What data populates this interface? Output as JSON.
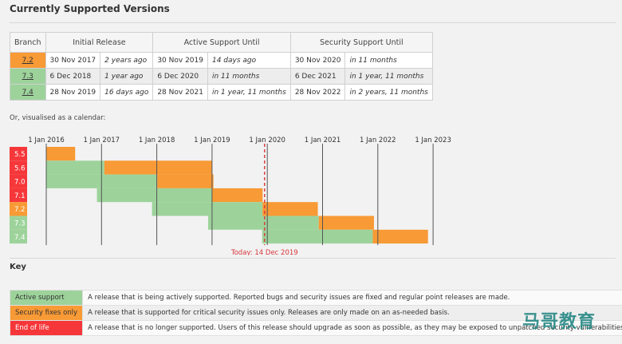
{
  "page": {
    "title": "Currently Supported Versions",
    "calendar_caption": "Or, visualised as a calendar:",
    "key_title": "Key",
    "watermark": "马哥教育"
  },
  "table": {
    "headers": [
      "Branch",
      "Initial Release",
      "Active Support Until",
      "Security Support Until"
    ],
    "rows": [
      {
        "branch": "7.2",
        "status": "security",
        "initial": "30 Nov 2017",
        "initial_rel": "2 years ago",
        "active": "30 Nov 2019",
        "active_rel": "14 days ago",
        "security": "30 Nov 2020",
        "security_rel": "in 11 months"
      },
      {
        "branch": "7.3",
        "status": "active",
        "initial": "6 Dec 2018",
        "initial_rel": "1 year ago",
        "active": "6 Dec 2020",
        "active_rel": "in 11 months",
        "security": "6 Dec 2021",
        "security_rel": "in 1 year, 11 months"
      },
      {
        "branch": "7.4",
        "status": "active",
        "initial": "28 Nov 2019",
        "initial_rel": "16 days ago",
        "active": "28 Nov 2021",
        "active_rel": "in 1 year, 11 months",
        "security": "28 Nov 2022",
        "security_rel": "in 2 years, 11 months"
      }
    ]
  },
  "colors": {
    "active": "#9dd39b",
    "security": "#f89a35",
    "eol": "#f6373a",
    "today": "#d9363a"
  },
  "chart_data": {
    "type": "bar",
    "years": [
      "1 Jan 2016",
      "1 Jan 2017",
      "1 Jan 2018",
      "1 Jan 2019",
      "1 Jan 2020",
      "1 Jan 2021",
      "1 Jan 2022",
      "1 Jan 2023"
    ],
    "today_label": "Today: 14 Dec 2019",
    "today": "2019-12-14",
    "branches": [
      {
        "name": "5.5",
        "status": "eol",
        "release": "2016-01-01",
        "active_end": "2016-01-01",
        "security_end": "2016-07-10"
      },
      {
        "name": "5.6",
        "status": "eol",
        "release": "2016-01-01",
        "active_end": "2017-01-19",
        "security_end": "2018-12-31"
      },
      {
        "name": "7.0",
        "status": "eol",
        "release": "2016-01-01",
        "active_end": "2018-01-04",
        "security_end": "2019-01-10"
      },
      {
        "name": "7.1",
        "status": "eol",
        "release": "2016-12-01",
        "active_end": "2019-01-01",
        "security_end": "2019-12-01"
      },
      {
        "name": "7.2",
        "status": "security",
        "release": "2017-11-30",
        "active_end": "2019-11-30",
        "security_end": "2020-11-30"
      },
      {
        "name": "7.3",
        "status": "active",
        "release": "2018-12-06",
        "active_end": "2020-12-06",
        "security_end": "2021-12-06"
      },
      {
        "name": "7.4",
        "status": "active",
        "release": "2019-11-28",
        "active_end": "2021-11-28",
        "security_end": "2022-11-28"
      }
    ]
  },
  "key": [
    {
      "label": "Active support",
      "status": "active",
      "desc": "A release that is being actively supported. Reported bugs and security issues are fixed and regular point releases are made."
    },
    {
      "label": "Security fixes only",
      "status": "security",
      "desc": "A release that is supported for critical security issues only. Releases are only made on an as-needed basis."
    },
    {
      "label": "End of life",
      "status": "eol",
      "desc": "A release that is no longer supported. Users of this release should upgrade as soon as possible, as they may be exposed to unpatched security vulnerabilities."
    }
  ]
}
